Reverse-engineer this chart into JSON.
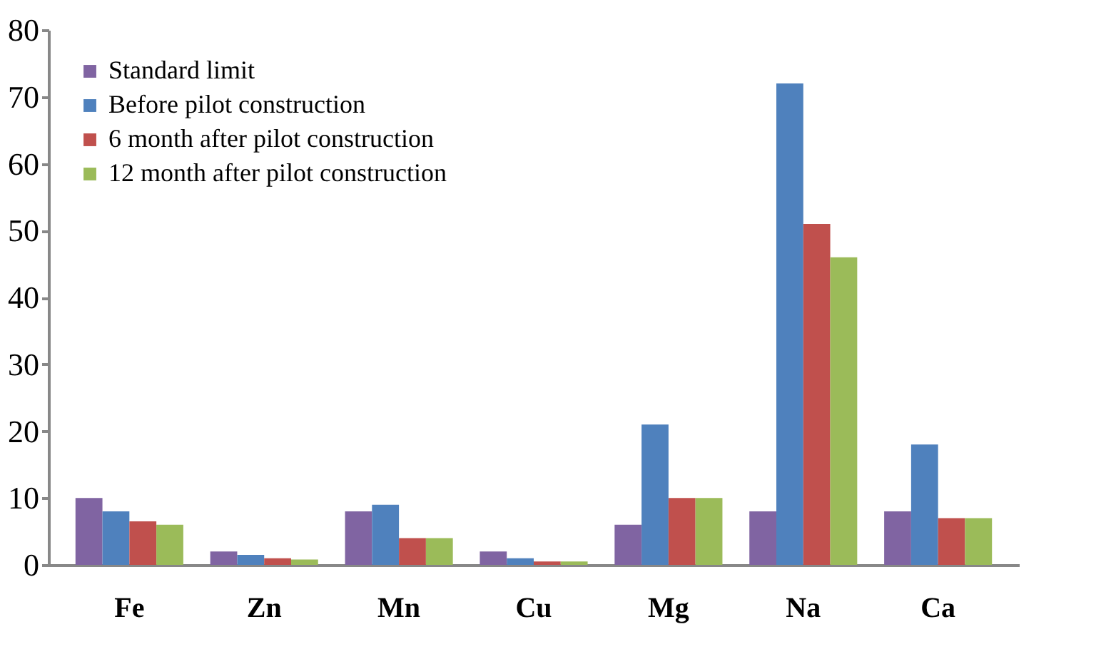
{
  "chart_data": {
    "type": "bar",
    "categories": [
      "Fe",
      "Zn",
      "Mn",
      "Cu",
      "Mg",
      "Na",
      "Ca"
    ],
    "series": [
      {
        "name": "Standard limit",
        "color": "#8064a2",
        "values": [
          10,
          2,
          8,
          2,
          6,
          8,
          8
        ]
      },
      {
        "name": "Before pilot construction",
        "color": "#4f81bd",
        "values": [
          8,
          1.5,
          9,
          1,
          21,
          72,
          18
        ]
      },
      {
        "name": "6 month after pilot construction",
        "color": "#c0504d",
        "values": [
          6.5,
          1,
          4,
          0.5,
          10,
          51,
          7
        ]
      },
      {
        "name": "12 month after pilot construction",
        "color": "#9bbb59",
        "values": [
          6,
          0.8,
          4,
          0.5,
          10,
          46,
          7
        ]
      }
    ],
    "ylim": [
      0,
      80
    ],
    "yticks": [
      0,
      10,
      20,
      30,
      40,
      50,
      60,
      70,
      80
    ],
    "grid": false,
    "legend": "top left"
  }
}
